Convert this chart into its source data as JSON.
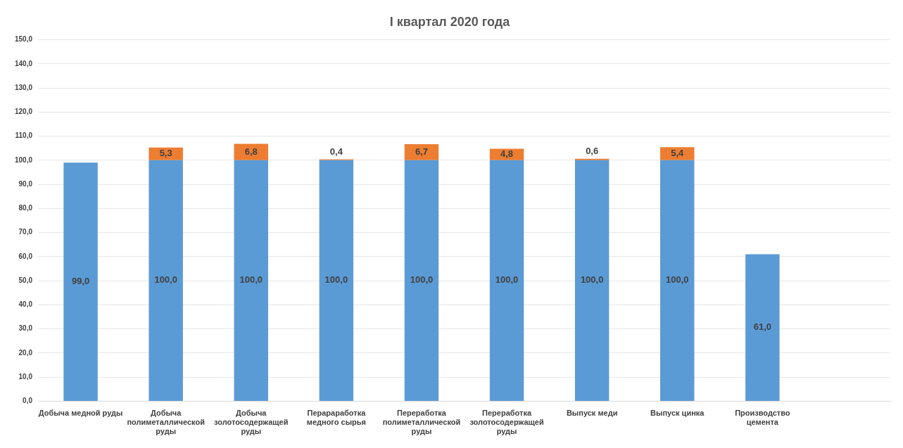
{
  "chart_data": {
    "type": "bar",
    "stacked": true,
    "title": "I квартал 2020 года",
    "categories": [
      "Добыча медной руды",
      "Добыча полиметаллической руды",
      "Добыча золотосодержащей руды",
      "Перараработка медного сырья",
      "Переработка полиметаллической руды",
      "Переработка золотосодержащей руды",
      "Выпуск меди",
      "Выпуск цинка",
      "Производство цемента",
      null
    ],
    "series": [
      {
        "color": "#5b9bd5",
        "values": [
          99.0,
          100.0,
          100.0,
          100.0,
          100.0,
          100.0,
          100.0,
          100.0,
          61.0,
          null
        ],
        "value_labels": [
          "99,0",
          "100,0",
          "100,0",
          "100,0",
          "100,0",
          "100,0",
          "100,0",
          "100,0",
          "61,0",
          null
        ]
      },
      {
        "color": "#ed7d31",
        "values": [
          null,
          5.3,
          6.8,
          0.4,
          6.7,
          4.8,
          0.6,
          5.4,
          null,
          null
        ],
        "value_labels": [
          null,
          "5,3",
          "6,8",
          "0,4",
          "6,7",
          "4,8",
          "0,6",
          "5,4",
          null,
          null
        ]
      }
    ],
    "ylim": [
      0,
      150
    ],
    "yticks": [
      {
        "value": 0,
        "label": "0,0"
      },
      {
        "value": 10,
        "label": "10,0"
      },
      {
        "value": 20,
        "label": "20,0"
      },
      {
        "value": 30,
        "label": "30,0"
      },
      {
        "value": 40,
        "label": "40,0"
      },
      {
        "value": 50,
        "label": "50,0"
      },
      {
        "value": 60,
        "label": "60,0"
      },
      {
        "value": 70,
        "label": "70,0"
      },
      {
        "value": 80,
        "label": "80,0"
      },
      {
        "value": 90,
        "label": "90,0"
      },
      {
        "value": 100,
        "label": "100,0"
      },
      {
        "value": 110,
        "label": "110,0"
      },
      {
        "value": 120,
        "label": "120,0"
      },
      {
        "value": 130,
        "label": "130,0"
      },
      {
        "value": 140,
        "label": "140,0"
      },
      {
        "value": 150,
        "label": "150,0"
      }
    ],
    "grid": "y",
    "legend": false
  }
}
